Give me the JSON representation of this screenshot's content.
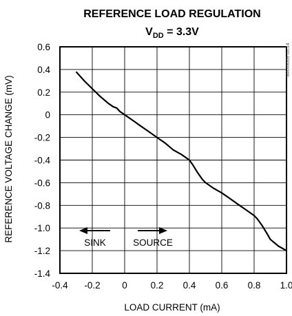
{
  "chart_data": {
    "type": "line",
    "title": "REFERENCE LOAD REGULATION",
    "subtitle_main": "V",
    "subtitle_sub": "DD",
    "subtitle_rest": " = 3.3V",
    "xlabel": "LOAD CURRENT (mA)",
    "ylabel": "REFERENCE VOLTAGE CHANGE (mV)",
    "xlim": [
      -0.4,
      1.0
    ],
    "ylim": [
      -1.4,
      0.6
    ],
    "xticks": [
      -0.4,
      -0.2,
      0,
      0.2,
      0.4,
      0.6,
      0.8,
      1.0
    ],
    "xtick_labels": [
      "-0.4",
      "-0.2",
      "0",
      "0.2",
      "0.4",
      "0.6",
      "0.8",
      "1.0"
    ],
    "yticks": [
      0.6,
      0.4,
      0.2,
      0,
      -0.2,
      -0.4,
      -0.6,
      -0.8,
      -1.0,
      -1.2,
      -1.4
    ],
    "ytick_labels": [
      "0.6",
      "0.4",
      "0.2",
      "0",
      "-0.2",
      "-0.4",
      "-0.6",
      "-0.8",
      "-1.0",
      "-1.2",
      "-1.4"
    ],
    "grid": true,
    "series": [
      {
        "x": [
          -0.3,
          -0.25,
          -0.2,
          -0.15,
          -0.1,
          -0.07,
          -0.05,
          -0.03,
          0,
          0.05,
          0.1,
          0.15,
          0.2,
          0.25,
          0.3,
          0.35,
          0.4,
          0.42,
          0.45,
          0.48,
          0.5,
          0.55,
          0.6,
          0.65,
          0.7,
          0.75,
          0.8,
          0.82,
          0.85,
          0.88,
          0.9,
          0.95,
          1.0
        ],
        "y": [
          0.38,
          0.3,
          0.23,
          0.16,
          0.1,
          0.07,
          0.06,
          0.03,
          0.0,
          -0.05,
          -0.1,
          -0.15,
          -0.2,
          -0.25,
          -0.31,
          -0.35,
          -0.4,
          -0.44,
          -0.51,
          -0.57,
          -0.6,
          -0.65,
          -0.69,
          -0.74,
          -0.79,
          -0.84,
          -0.89,
          -0.92,
          -0.98,
          -1.05,
          -1.1,
          -1.16,
          -1.2
        ]
      }
    ],
    "annotations": {
      "sink": "SINK",
      "source": "SOURCE",
      "watermark": "MAX6069 toc14"
    }
  }
}
